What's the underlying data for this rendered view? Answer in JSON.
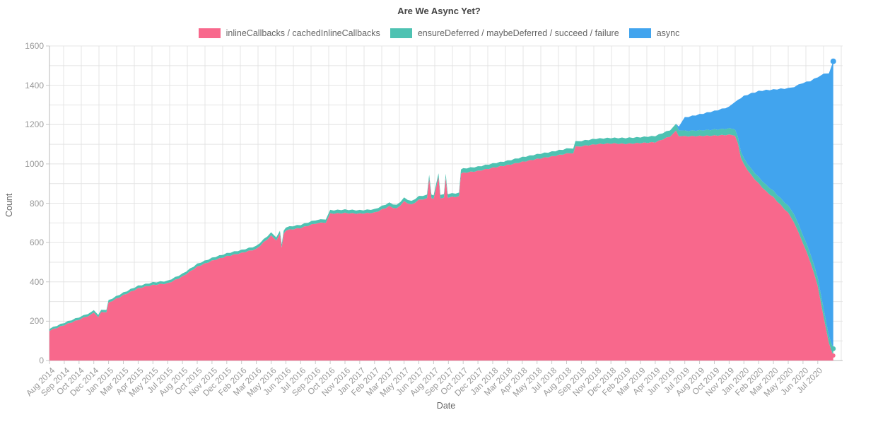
{
  "title": "Are We Async Yet?",
  "axes": {
    "x_title": "Date",
    "y_title": "Count"
  },
  "colors": {
    "inlineCallbacks": "#F8688C",
    "ensureDeferred": "#4EC2B2",
    "async": "#41A4EE",
    "grid": "#e4e4e4",
    "axis": "#b9b9b9",
    "tick_label": "#999999",
    "title_text": "#444444"
  },
  "chart_data": {
    "type": "area",
    "stacked": true,
    "title": "Are We Async Yet?",
    "xlabel": "Date",
    "ylabel": "Count",
    "ylim": [
      0,
      1600
    ],
    "grid": true,
    "legend_position": "top-center",
    "y_tick_labels": [
      "0",
      "200",
      "400",
      "600",
      "800",
      "1000",
      "1200",
      "1400",
      "1600"
    ],
    "x_tick_labels": [
      "Aug 2014",
      "Sep 2014",
      "Oct 2014",
      "Dec 2014",
      "Jan 2015",
      "Mar 2015",
      "Apr 2015",
      "May 2015",
      "Jul 2015",
      "Aug 2015",
      "Oct 2015",
      "Nov 2015",
      "Dec 2015",
      "Feb 2016",
      "Mar 2016",
      "May 2016",
      "Jun 2016",
      "Jul 2016",
      "Sep 2016",
      "Oct 2016",
      "Nov 2016",
      "Jan 2017",
      "Feb 2017",
      "Mar 2017",
      "May 2017",
      "Jun 2017",
      "Aug 2017",
      "Sep 2017",
      "Oct 2017",
      "Dec 2017",
      "Jan 2018",
      "Mar 2018",
      "Apr 2018",
      "May 2018",
      "Jul 2018",
      "Aug 2018",
      "Sep 2018",
      "Nov 2018",
      "Dec 2018",
      "Feb 2019",
      "Mar 2019",
      "Apr 2019",
      "Jun 2019",
      "Jul 2019",
      "Aug 2019",
      "Oct 2019",
      "Nov 2019",
      "Jan 2020",
      "Feb 2020",
      "Mar 2020",
      "May 2020",
      "Jun 2020",
      "Jul 2020"
    ],
    "series": [
      {
        "name": "inlineCallbacks / cachedInlineCallbacks",
        "color": "#F8688C",
        "key": "inline"
      },
      {
        "name": "ensureDeferred / maybeDeferred / succeed / failure",
        "color": "#4EC2B2",
        "key": "ensure"
      },
      {
        "name": "async",
        "color": "#41A4EE",
        "key": "async"
      }
    ],
    "points": [
      {
        "t": 0,
        "label": "Aug 2014",
        "inline": 150,
        "ensure": 10,
        "async": 0
      },
      {
        "t": 1,
        "label": "Sep 2014",
        "inline": 178,
        "ensure": 12,
        "async": 0
      },
      {
        "t": 2,
        "label": "Oct 2014",
        "inline": 206,
        "ensure": 12,
        "async": 0
      },
      {
        "t": 2.6,
        "inline": 224,
        "ensure": 12,
        "async": 0
      },
      {
        "t": 3,
        "label": "Dec 2014",
        "inline": 240,
        "ensure": 12,
        "async": 0
      },
      {
        "t": 3.3,
        "inline": 220,
        "ensure": 12,
        "async": 0
      },
      {
        "t": 3.5,
        "inline": 242,
        "ensure": 12,
        "async": 0
      },
      {
        "t": 3.85,
        "inline": 245,
        "ensure": 12,
        "async": 0
      },
      {
        "t": 4,
        "label": "Jan 2015",
        "inline": 292,
        "ensure": 12,
        "async": 0
      },
      {
        "t": 5,
        "label": "Mar 2015",
        "inline": 330,
        "ensure": 13,
        "async": 0
      },
      {
        "t": 6,
        "label": "Apr 2015",
        "inline": 365,
        "ensure": 13,
        "async": 0
      },
      {
        "t": 7,
        "label": "May 2015",
        "inline": 382,
        "ensure": 13,
        "async": 0
      },
      {
        "t": 8,
        "label": "Jul 2015",
        "inline": 390,
        "ensure": 13,
        "async": 0
      },
      {
        "t": 9,
        "label": "Aug 2015",
        "inline": 425,
        "ensure": 14,
        "async": 0
      },
      {
        "t": 10,
        "label": "Oct 2015",
        "inline": 475,
        "ensure": 14,
        "async": 0
      },
      {
        "t": 11,
        "label": "Nov 2015",
        "inline": 505,
        "ensure": 15,
        "async": 0
      },
      {
        "t": 12,
        "label": "Dec 2015",
        "inline": 528,
        "ensure": 15,
        "async": 0
      },
      {
        "t": 13,
        "label": "Feb 2016",
        "inline": 545,
        "ensure": 15,
        "async": 0
      },
      {
        "t": 14,
        "label": "Mar 2016",
        "inline": 565,
        "ensure": 15,
        "async": 0
      },
      {
        "t": 15,
        "label": "May 2016",
        "inline": 632,
        "ensure": 16,
        "async": 0
      },
      {
        "t": 15.35,
        "inline": 610,
        "ensure": 16,
        "async": 0
      },
      {
        "t": 15.6,
        "inline": 640,
        "ensure": 16,
        "async": 0
      },
      {
        "t": 15.72,
        "inline": 574,
        "ensure": 16,
        "async": 0
      },
      {
        "t": 15.85,
        "inline": 640,
        "ensure": 16,
        "async": 0
      },
      {
        "t": 16,
        "label": "Jun 2016",
        "inline": 660,
        "ensure": 16,
        "async": 0
      },
      {
        "t": 17,
        "label": "Jul 2016",
        "inline": 672,
        "ensure": 16,
        "async": 0
      },
      {
        "t": 18,
        "label": "Sep 2016",
        "inline": 695,
        "ensure": 17,
        "async": 0
      },
      {
        "t": 18.7,
        "inline": 700,
        "ensure": 17,
        "async": 0
      },
      {
        "t": 19,
        "label": "Oct 2016",
        "inline": 745,
        "ensure": 17,
        "async": 0
      },
      {
        "t": 20,
        "label": "Nov 2016",
        "inline": 748,
        "ensure": 17,
        "async": 0
      },
      {
        "t": 21,
        "label": "Jan 2017",
        "inline": 745,
        "ensure": 17,
        "async": 0
      },
      {
        "t": 22,
        "label": "Feb 2017",
        "inline": 750,
        "ensure": 17,
        "async": 0
      },
      {
        "t": 23,
        "label": "Mar 2017",
        "inline": 782,
        "ensure": 18,
        "async": 0
      },
      {
        "t": 23.5,
        "inline": 770,
        "ensure": 18,
        "async": 0
      },
      {
        "t": 24,
        "label": "May 2017",
        "inline": 807,
        "ensure": 18,
        "async": 0
      },
      {
        "t": 24.5,
        "inline": 790,
        "ensure": 18,
        "async": 0
      },
      {
        "t": 25,
        "label": "Jun 2017",
        "inline": 815,
        "ensure": 18,
        "async": 0
      },
      {
        "t": 25.55,
        "inline": 822,
        "ensure": 18,
        "async": 0
      },
      {
        "t": 25.7,
        "inline": 925,
        "ensure": 20,
        "async": 0
      },
      {
        "t": 25.85,
        "inline": 822,
        "ensure": 18,
        "async": 0
      },
      {
        "t": 26,
        "label": "Aug 2017",
        "inline": 822,
        "ensure": 18,
        "async": 0
      },
      {
        "t": 26.33,
        "inline": 928,
        "ensure": 20,
        "async": 0
      },
      {
        "t": 26.46,
        "inline": 824,
        "ensure": 18,
        "async": 0
      },
      {
        "t": 26.7,
        "inline": 824,
        "ensure": 18,
        "async": 0
      },
      {
        "t": 26.82,
        "inline": 930,
        "ensure": 20,
        "async": 0
      },
      {
        "t": 26.95,
        "inline": 826,
        "ensure": 18,
        "async": 0
      },
      {
        "t": 27,
        "label": "Sep 2017",
        "inline": 828,
        "ensure": 18,
        "async": 0
      },
      {
        "t": 27.72,
        "inline": 832,
        "ensure": 18,
        "async": 0
      },
      {
        "t": 27.85,
        "inline": 950,
        "ensure": 22,
        "async": 0
      },
      {
        "t": 28,
        "label": "Oct 2017",
        "inline": 952,
        "ensure": 22,
        "async": 0
      },
      {
        "t": 29,
        "label": "Dec 2017",
        "inline": 962,
        "ensure": 22,
        "async": 0
      },
      {
        "t": 30,
        "label": "Jan 2018",
        "inline": 978,
        "ensure": 22,
        "async": 0
      },
      {
        "t": 31,
        "label": "Mar 2018",
        "inline": 992,
        "ensure": 22,
        "async": 0
      },
      {
        "t": 32,
        "label": "Apr 2018",
        "inline": 1008,
        "ensure": 24,
        "async": 0
      },
      {
        "t": 33,
        "label": "May 2018",
        "inline": 1023,
        "ensure": 24,
        "async": 0
      },
      {
        "t": 34,
        "label": "Jul 2018",
        "inline": 1036,
        "ensure": 24,
        "async": 0
      },
      {
        "t": 35,
        "label": "Aug 2018",
        "inline": 1050,
        "ensure": 25,
        "async": 0
      },
      {
        "t": 35.45,
        "inline": 1053,
        "ensure": 25,
        "async": 0
      },
      {
        "t": 35.6,
        "inline": 1085,
        "ensure": 27,
        "async": 0
      },
      {
        "t": 36,
        "label": "Sep 2018",
        "inline": 1088,
        "ensure": 27,
        "async": 0
      },
      {
        "t": 37,
        "label": "Nov 2018",
        "inline": 1098,
        "ensure": 28,
        "async": 0
      },
      {
        "t": 38,
        "label": "Dec 2018",
        "inline": 1102,
        "ensure": 28,
        "async": 0
      },
      {
        "t": 39,
        "label": "Feb 2019",
        "inline": 1100,
        "ensure": 30,
        "async": 0
      },
      {
        "t": 40,
        "label": "Mar 2019",
        "inline": 1104,
        "ensure": 30,
        "async": 0
      },
      {
        "t": 41,
        "label": "Apr 2019",
        "inline": 1108,
        "ensure": 32,
        "async": 0
      },
      {
        "t": 42,
        "label": "Jun 2019",
        "inline": 1138,
        "ensure": 32,
        "async": 0
      },
      {
        "t": 42.4,
        "inline": 1165,
        "ensure": 35,
        "async": 0
      },
      {
        "t": 42.6,
        "inline": 1140,
        "ensure": 30,
        "async": 20
      },
      {
        "t": 43,
        "label": "Jul 2019",
        "inline": 1138,
        "ensure": 28,
        "async": 68
      },
      {
        "t": 44,
        "label": "Aug 2019",
        "inline": 1140,
        "ensure": 28,
        "async": 82
      },
      {
        "t": 45,
        "label": "Oct 2019",
        "inline": 1142,
        "ensure": 30,
        "async": 95
      },
      {
        "t": 46,
        "label": "Nov 2019",
        "inline": 1146,
        "ensure": 32,
        "async": 110
      },
      {
        "t": 46.4,
        "inline": 1143,
        "ensure": 32,
        "async": 140
      },
      {
        "t": 46.6,
        "inline": 1100,
        "ensure": 32,
        "async": 190
      },
      {
        "t": 46.8,
        "inline": 1030,
        "ensure": 32,
        "async": 272
      },
      {
        "t": 47,
        "label": "Jan 2020",
        "inline": 995,
        "ensure": 30,
        "async": 318
      },
      {
        "t": 47.5,
        "inline": 940,
        "ensure": 32,
        "async": 385
      },
      {
        "t": 48,
        "label": "Feb 2020",
        "inline": 898,
        "ensure": 32,
        "async": 438
      },
      {
        "t": 48.5,
        "inline": 858,
        "ensure": 33,
        "async": 482
      },
      {
        "t": 49,
        "label": "Mar 2020",
        "inline": 828,
        "ensure": 32,
        "async": 516
      },
      {
        "t": 49.5,
        "inline": 788,
        "ensure": 34,
        "async": 558
      },
      {
        "t": 50,
        "label": "May 2020",
        "inline": 748,
        "ensure": 36,
        "async": 598
      },
      {
        "t": 50.4,
        "inline": 700,
        "ensure": 42,
        "async": 648
      },
      {
        "t": 51,
        "label": "Jun 2020",
        "inline": 595,
        "ensure": 40,
        "async": 775
      },
      {
        "t": 51.5,
        "inline": 500,
        "ensure": 42,
        "async": 878
      },
      {
        "t": 52,
        "label": "Jul 2020",
        "inline": 378,
        "ensure": 42,
        "async": 1020
      },
      {
        "t": 52.4,
        "inline": 215,
        "ensure": 40,
        "async": 1200
      },
      {
        "t": 52.75,
        "inline": 90,
        "ensure": 35,
        "async": 1335
      },
      {
        "t": 53.05,
        "inline": 25,
        "ensure": 35,
        "async": 1462
      }
    ]
  }
}
